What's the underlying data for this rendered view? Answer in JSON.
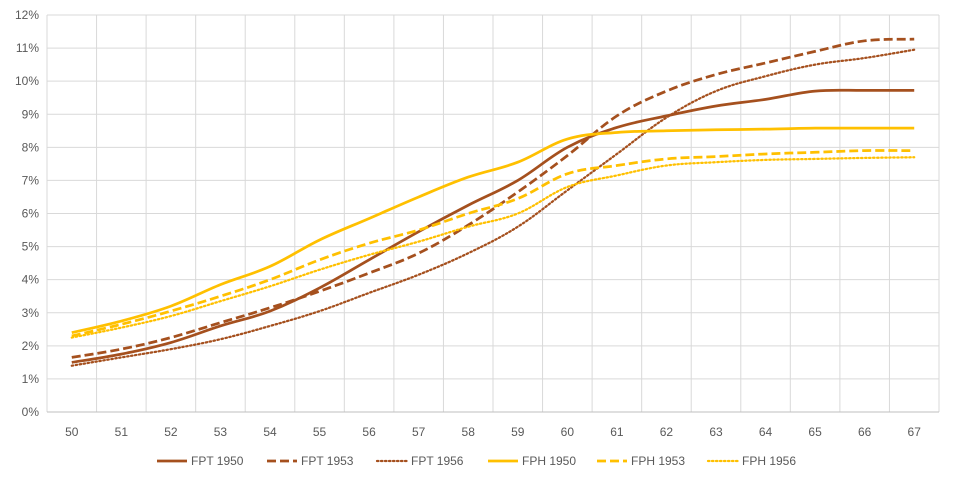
{
  "chart_data": {
    "type": "line",
    "title": "",
    "xlabel": "",
    "ylabel": "",
    "x": [
      50,
      51,
      52,
      53,
      54,
      55,
      56,
      57,
      58,
      59,
      60,
      61,
      62,
      63,
      64,
      65,
      66,
      67
    ],
    "ylim": [
      0,
      12
    ],
    "y_ticks": [
      0,
      1,
      2,
      3,
      4,
      5,
      6,
      7,
      8,
      9,
      10,
      11,
      12
    ],
    "y_tick_labels": [
      "0%",
      "1%",
      "2%",
      "3%",
      "4%",
      "5%",
      "6%",
      "7%",
      "8%",
      "9%",
      "10%",
      "11%",
      "12%"
    ],
    "x_tick_labels": [
      "50",
      "51",
      "52",
      "53",
      "54",
      "55",
      "56",
      "57",
      "58",
      "59",
      "60",
      "61",
      "62",
      "63",
      "64",
      "65",
      "66",
      "67"
    ],
    "grid": true,
    "legend_position": "bottom",
    "series": [
      {
        "name": "FPT 1950",
        "color": "#A5501E",
        "dash": "solid",
        "values": [
          1.5,
          1.75,
          2.1,
          2.6,
          3.05,
          3.75,
          4.6,
          5.45,
          6.25,
          7.0,
          8.0,
          8.6,
          8.95,
          9.25,
          9.45,
          9.7,
          9.72,
          9.72
        ]
      },
      {
        "name": "FPT 1953",
        "color": "#A5501E",
        "dash": "dashed",
        "values": [
          1.65,
          1.9,
          2.25,
          2.7,
          3.15,
          3.65,
          4.2,
          4.8,
          5.65,
          6.65,
          7.75,
          8.95,
          9.7,
          10.2,
          10.55,
          10.9,
          11.22,
          11.27
        ]
      },
      {
        "name": "FPT 1956",
        "color": "#A5501E",
        "dash": "dotted",
        "values": [
          1.4,
          1.65,
          1.9,
          2.2,
          2.6,
          3.05,
          3.6,
          4.15,
          4.8,
          5.6,
          6.7,
          7.8,
          8.9,
          9.7,
          10.15,
          10.5,
          10.7,
          10.95
        ]
      },
      {
        "name": "FPH 1950",
        "color": "#FFC000",
        "dash": "solid",
        "values": [
          2.4,
          2.75,
          3.2,
          3.85,
          4.4,
          5.2,
          5.85,
          6.5,
          7.1,
          7.55,
          8.25,
          8.45,
          8.5,
          8.53,
          8.55,
          8.58,
          8.58,
          8.58
        ]
      },
      {
        "name": "FPH 1953",
        "color": "#FFC000",
        "dash": "dashed",
        "values": [
          2.3,
          2.65,
          3.05,
          3.5,
          4.0,
          4.6,
          5.1,
          5.5,
          6.0,
          6.45,
          7.2,
          7.45,
          7.65,
          7.72,
          7.8,
          7.85,
          7.9,
          7.9
        ]
      },
      {
        "name": "FPH 1956",
        "color": "#FFC000",
        "dash": "dotted",
        "values": [
          2.25,
          2.55,
          2.9,
          3.35,
          3.8,
          4.3,
          4.75,
          5.15,
          5.6,
          6.0,
          6.8,
          7.15,
          7.45,
          7.55,
          7.62,
          7.65,
          7.68,
          7.7
        ]
      }
    ]
  }
}
